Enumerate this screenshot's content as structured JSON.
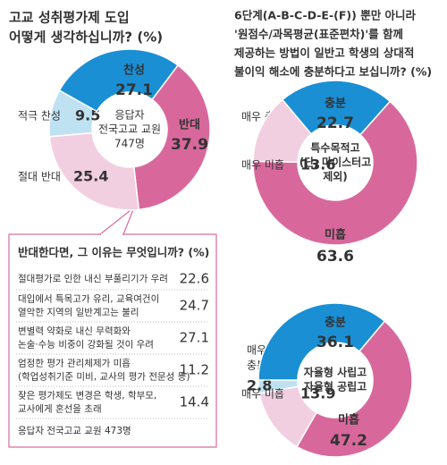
{
  "chart_data": [
    {
      "type": "donut",
      "title": [
        "고교 성취평가제 도입",
        "어떻게 생각하십니까? (%)"
      ],
      "center_text": [
        "응답자",
        "전국고교 교원",
        "747명"
      ],
      "categories": [
        "적극 찬성",
        "찬성",
        "반대",
        "절대 반대"
      ],
      "values": [
        9.5,
        27.1,
        37.9,
        25.4
      ],
      "colors": [
        "#bfe2f3",
        "#1a8fd4",
        "#d8689c",
        "#f1cfe0"
      ]
    },
    {
      "type": "donut",
      "title": [
        "6단계(A-B-C-D-E-(F)) 뿐만 아니라",
        "'원점수/과목평균(표준편차)'를 함께",
        "제공하는 방법이 일반고 학생의 상대적",
        "불이익 해소에 충분하다고 보십니까? (%)"
      ],
      "center_text": [
        "특수목적고",
        "(단, 마이스터고",
        "제외)"
      ],
      "categories": [
        "매우 충분",
        "충분",
        "미흡",
        "매우 미흡"
      ],
      "values": [
        0,
        22.7,
        63.6,
        13.6
      ],
      "colors": [
        "#bfe2f3",
        "#1a8fd4",
        "#d8689c",
        "#f1cfe0"
      ]
    },
    {
      "type": "donut",
      "center_text": [
        "자율형 사립고",
        "자율형 공립고"
      ],
      "categories": [
        [
          "매우",
          "충분"
        ],
        "충분",
        "미흡",
        "매우 미흡"
      ],
      "values": [
        2.8,
        36.1,
        47.2,
        13.9
      ],
      "colors": [
        "#bfe2f3",
        "#1a8fd4",
        "#d8689c",
        "#f1cfe0"
      ]
    }
  ],
  "reasons": {
    "title": "반대한다면, 그 이유는 무엇입니까? (%)",
    "items": [
      {
        "label": [
          "절대평가로 인한 내신 부풀리기가 우려"
        ],
        "value": 22.6
      },
      {
        "label": [
          "대입에서 특목고가 유리, 교육여건이",
          "열악한 지역의 일반계고는 불리"
        ],
        "value": 24.7
      },
      {
        "label": [
          "변별력 약화로 내신 무력화와",
          "논술·수능 비중이 강화될 것이 우려"
        ],
        "value": 27.1
      },
      {
        "label": [
          "엄정한 평가 관리체제가 미흡",
          "(학업성취기준 미비, 교사의 평가 전문성 등)"
        ],
        "value": 11.2
      },
      {
        "label": [
          "잦은 평가제도 변경은 학생, 학부모,",
          "교사에게 혼선을 초래"
        ],
        "value": 14.4
      }
    ],
    "note": "응답자 전국고교 교원 473명"
  }
}
